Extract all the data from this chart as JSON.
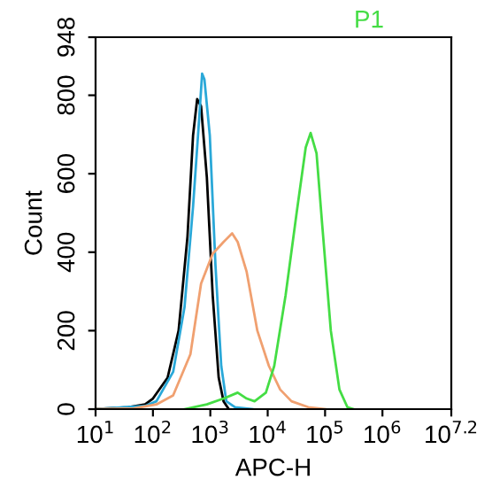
{
  "chart_data": {
    "type": "line",
    "xlabel": "APC-H",
    "ylabel": "Count",
    "log": "x",
    "grid": false,
    "marker": "none",
    "line_style": "solid",
    "xlim": [
      10,
      15848932
    ],
    "ylim": [
      0,
      948
    ],
    "xticks": [
      {
        "value": 10,
        "label": "10$^{1}$"
      },
      {
        "value": 100,
        "label": "10$^{2}$"
      },
      {
        "value": 1000,
        "label": "10$^{3}$"
      },
      {
        "value": 10000,
        "label": "10$^{4}$"
      },
      {
        "value": 100000,
        "label": "10$^{5}$"
      },
      {
        "value": 1000000,
        "label": "10$^{6}$"
      },
      {
        "value": 15848932,
        "label": "10$^{7.2}$"
      }
    ],
    "yticks": [
      0,
      200,
      400,
      600,
      800,
      948
    ],
    "annotations": [
      "P1"
    ],
    "series": [
      {
        "color": "#000000",
        "x": [
          10,
          37,
          73,
          100,
          180,
          280,
          400,
          500,
          590,
          690,
          870,
          1100,
          1400,
          1700,
          2100
        ],
        "values": [
          0,
          5,
          12,
          27,
          80,
          200,
          440,
          697,
          790,
          772,
          591,
          290,
          80,
          20,
          0
        ]
      },
      {
        "color": "#2aa8d8",
        "x": [
          10,
          73,
          115,
          225,
          355,
          500,
          620,
          720,
          790,
          980,
          1230,
          1550,
          1900,
          2700,
          5400
        ],
        "values": [
          0,
          8,
          20,
          95,
          260,
          516,
          712,
          855,
          840,
          697,
          366,
          110,
          20,
          5,
          0
        ]
      },
      {
        "color": "#f0a070",
        "x": [
          10,
          47,
          115,
          225,
          450,
          690,
          1100,
          1700,
          2400,
          3000,
          4300,
          6600,
          10500,
          16500,
          26000,
          51000,
          100000
        ],
        "values": [
          0,
          2,
          12,
          35,
          140,
          320,
          396,
          426,
          448,
          426,
          350,
          200,
          110,
          50,
          20,
          5,
          0
        ]
      },
      {
        "color": "#44dd44",
        "x": [
          355,
          870,
          1700,
          3000,
          4300,
          5900,
          9300,
          13000,
          20500,
          32000,
          46000,
          56000,
          71000,
          89000,
          126000,
          178000,
          245000,
          310000
        ],
        "values": [
          0,
          12,
          27,
          42,
          27,
          20,
          42,
          110,
          290,
          501,
          667,
          704,
          652,
          471,
          200,
          50,
          5,
          0
        ]
      }
    ]
  }
}
